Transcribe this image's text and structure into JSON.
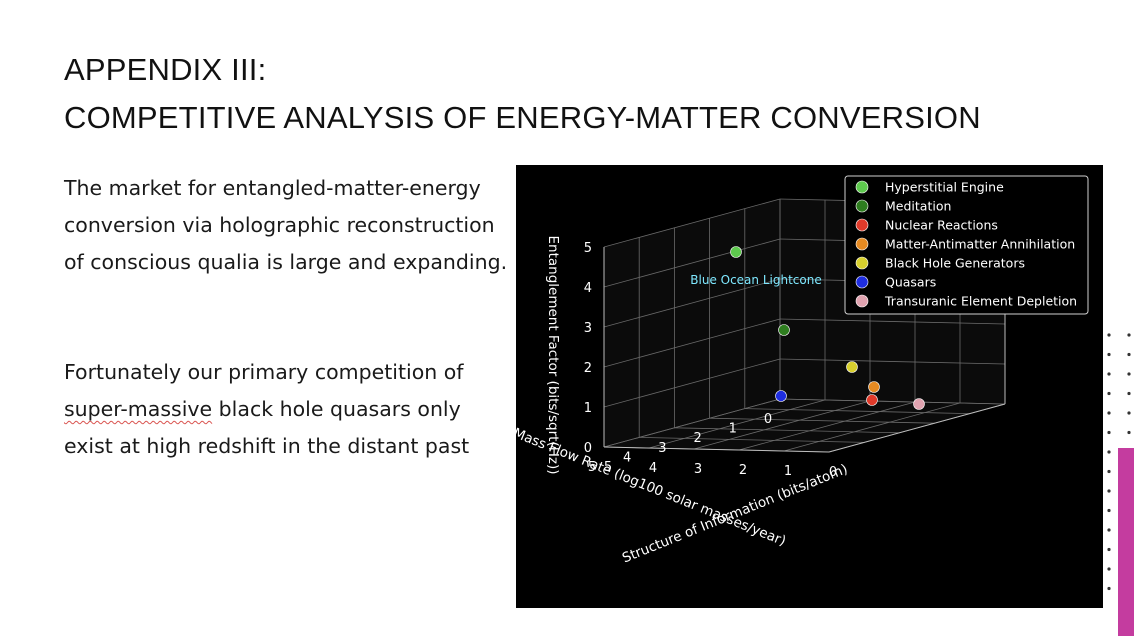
{
  "slide": {
    "title_line1": "APPENDIX III:",
    "title_line2": "COMPETITIVE ANALYSIS OF ENERGY-MATTER CONVERSION",
    "paragraph1": "The market for entangled-matter-energy conversion via holographic reconstruction of conscious qualia is large and expanding.",
    "paragraph2_word": "super-massive",
    "paragraph2_pre": "Fortunately our primary competition of ",
    "paragraph2_post": " black hole quasars only exist at high redshift in the distant past",
    "accent_color": "#c43c9f"
  },
  "chart_data": {
    "type": "scatter",
    "title": "",
    "xlabel": "Mass Flow Rate (log100 solar masses/year)",
    "ylabel": "Structure of Information (bits/atom)",
    "zlabel": "Entanglement Factor (bits/sqrt(Hz))",
    "xlim": [
      0,
      5
    ],
    "ylim": [
      0,
      5
    ],
    "zlim": [
      0,
      5
    ],
    "x_ticks": [
      "0",
      "1",
      "2",
      "3",
      "4",
      "5"
    ],
    "y_ticks": [
      "0",
      "1",
      "2",
      "3",
      "4",
      "5"
    ],
    "z_ticks": [
      "0",
      "1",
      "2",
      "3",
      "4",
      "5"
    ],
    "grid": true,
    "legend_position": "top-right",
    "annotation": {
      "text": "Blue Ocean Lightcone",
      "color": "#7fe8ff"
    },
    "series": [
      {
        "name": "Hyperstitial Engine",
        "color": "#5ec94e",
        "x": 0.6,
        "y": 4.0,
        "z": 4.8
      },
      {
        "name": "Meditation",
        "color": "#2e7d1f",
        "x": 1.0,
        "y": 2.0,
        "z": 3.2
      },
      {
        "name": "Nuclear Reactions",
        "color": "#e03a2a",
        "x": 2.0,
        "y": 0.5,
        "z": 0.8
      },
      {
        "name": "Matter-Antimatter Annihilation",
        "color": "#e58a22",
        "x": 1.0,
        "y": 0.2,
        "z": 1.4
      },
      {
        "name": "Black Hole Generators",
        "color": "#d8d02e",
        "x": 0.0,
        "y": 0.0,
        "z": 1.5
      },
      {
        "name": "Quasars",
        "color": "#1f2ee0",
        "x": 2.4,
        "y": 2.0,
        "z": 0.4
      },
      {
        "name": "Transuranic Element Depletion",
        "color": "#e0a3b0",
        "x": 2.5,
        "y": 0.0,
        "z": 0.5
      }
    ]
  }
}
